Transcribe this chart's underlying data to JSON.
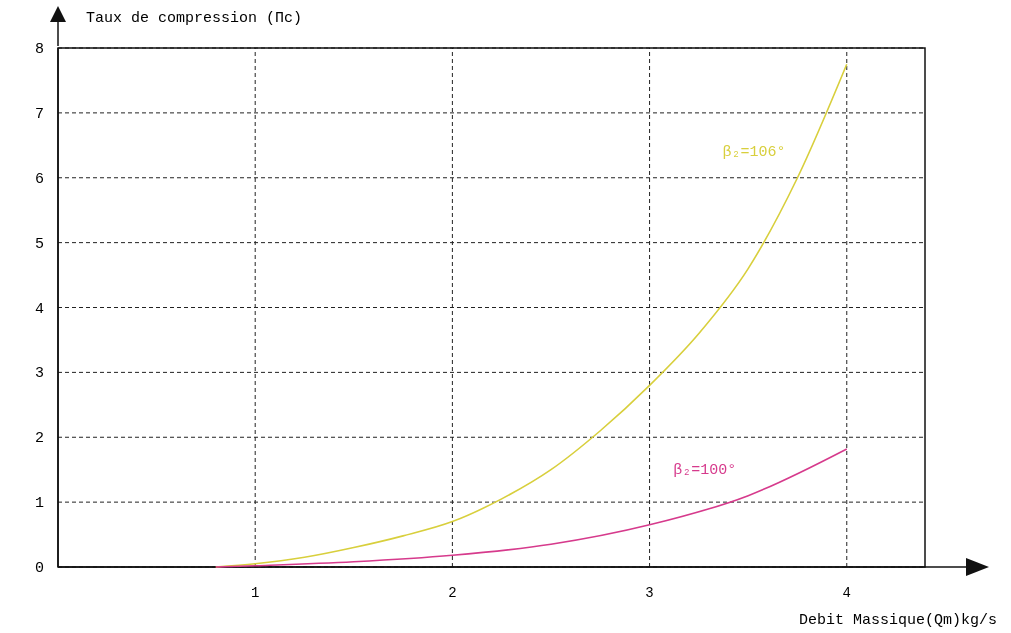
{
  "chart_data": {
    "type": "line",
    "ylabel": "Taux de compression (Πc)",
    "xlabel": "Debit Massique(Qm)kg/s",
    "xlim": [
      0,
      4.63
    ],
    "xticks": [
      1,
      2,
      3,
      4
    ],
    "ylim": [
      0,
      8
    ],
    "yticks": [
      0,
      1,
      2,
      3,
      4,
      5,
      6,
      7,
      8
    ],
    "grid": true,
    "marker": "none",
    "line_style": "solid",
    "series": [
      {
        "name": "β₂=106°",
        "color": "#d8cf3c",
        "x": [
          0.8,
          1,
          1.25,
          1.5,
          1.75,
          2,
          2.25,
          2.5,
          2.75,
          3,
          3.25,
          3.5,
          3.75,
          4
        ],
        "values": [
          0,
          0.05,
          0.15,
          0.3,
          0.48,
          0.7,
          1.05,
          1.5,
          2.1,
          2.8,
          3.6,
          4.6,
          6.0,
          7.75
        ]
      },
      {
        "name": "β₂=100°",
        "color": "#d63a8c",
        "x": [
          0.8,
          1,
          1.5,
          2,
          2.5,
          3,
          3.5,
          4
        ],
        "values": [
          0,
          0.02,
          0.08,
          0.18,
          0.35,
          0.65,
          1.1,
          1.82
        ]
      }
    ]
  }
}
